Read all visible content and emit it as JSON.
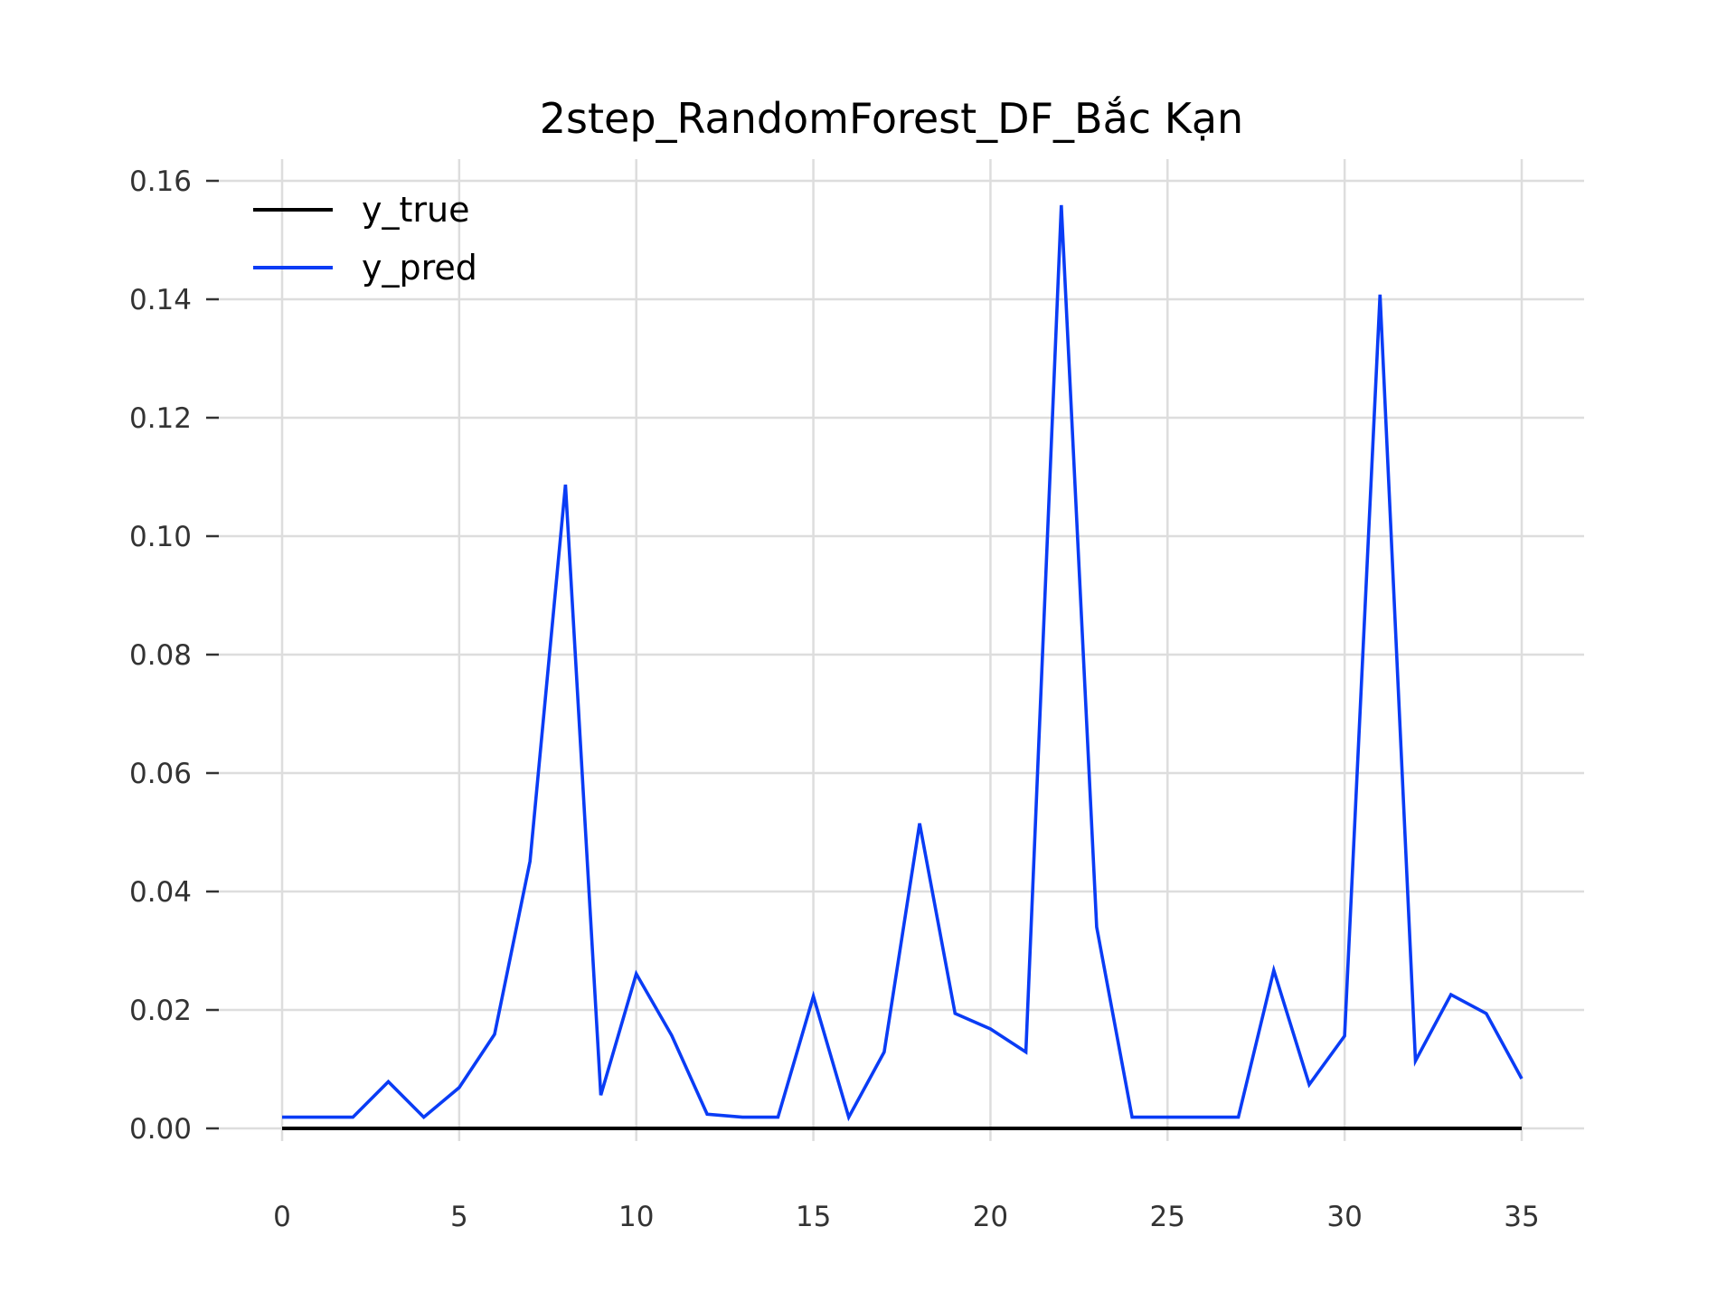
{
  "chart_data": {
    "type": "line",
    "title": "2step_RandomForest_DF_Bắc Kạn",
    "xlabel": "",
    "ylabel": "",
    "xlim": [
      0,
      35
    ],
    "ylim": [
      0.0,
      0.16
    ],
    "xticks": [
      0,
      5,
      10,
      15,
      20,
      25,
      30,
      35
    ],
    "xtick_labels": [
      "0",
      "5",
      "10",
      "15",
      "20",
      "25",
      "30",
      "35"
    ],
    "yticks": [
      0.0,
      0.02,
      0.04,
      0.06,
      0.08,
      0.1,
      0.12,
      0.14,
      0.16
    ],
    "ytick_labels": [
      "0.00",
      "0.02",
      "0.04",
      "0.06",
      "0.08",
      "0.10",
      "0.12",
      "0.14",
      "0.16"
    ],
    "grid": true,
    "legend_position": "top-left",
    "x": [
      0,
      1,
      2,
      3,
      4,
      5,
      6,
      7,
      8,
      9,
      10,
      11,
      12,
      13,
      14,
      15,
      16,
      17,
      18,
      19,
      20,
      21,
      22,
      23,
      24,
      25,
      26,
      27,
      28,
      29,
      30,
      31,
      32,
      33,
      34,
      35
    ],
    "series": [
      {
        "name": "y_true",
        "color": "#000000",
        "values": [
          0,
          0,
          0,
          0,
          0,
          0,
          0,
          0,
          0,
          0,
          0,
          0,
          0,
          0,
          0,
          0,
          0,
          0,
          0,
          0,
          0,
          0,
          0,
          0,
          0,
          0,
          0,
          0,
          0,
          0,
          0,
          0,
          0,
          0,
          0,
          0
        ]
      },
      {
        "name": "y_pred",
        "color": "#0a3cf5",
        "values": [
          0.0019,
          0.0019,
          0.0019,
          0.0079,
          0.0019,
          0.0069,
          0.0159,
          0.0451,
          0.1087,
          0.0056,
          0.0261,
          0.0157,
          0.0024,
          0.0019,
          0.0019,
          0.0223,
          0.0019,
          0.0129,
          0.0515,
          0.0194,
          0.0168,
          0.0129,
          0.1559,
          0.034,
          0.0019,
          0.0019,
          0.0019,
          0.0019,
          0.0267,
          0.0074,
          0.0156,
          0.1408,
          0.0114,
          0.0226,
          0.0194,
          0.0084
        ]
      }
    ]
  }
}
